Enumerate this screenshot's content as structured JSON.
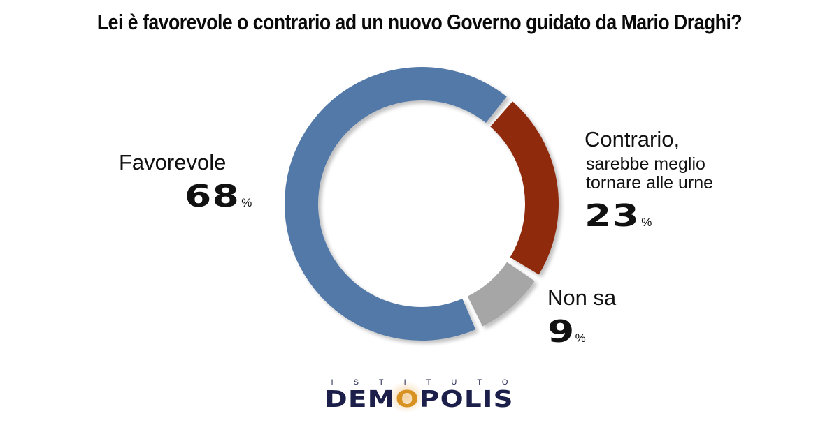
{
  "title": "Lei è favorevole o contrario ad un nuovo Governo guidato da Mario Draghi?",
  "labels": {
    "favorevole": {
      "name": "Favorevole",
      "value": "68",
      "unit": "%"
    },
    "contrario": {
      "name": "Contrario,",
      "sub1": "sarebbe meglio",
      "sub2": "tornare alle urne",
      "value": "23",
      "unit": "%"
    },
    "non_sa": {
      "name": "Non sa",
      "value": "9",
      "unit": "%"
    }
  },
  "logo": {
    "top": "ISTITUTO",
    "pre": "DEM",
    "o": "O",
    "post": "POLIS"
  },
  "colors": {
    "favorevole": "#5379a8",
    "contrario": "#8f2a0c",
    "non_sa": "#a6a6a6",
    "logo_navy": "#1c1f4a",
    "logo_orange": "#d89221"
  },
  "chart_data": {
    "type": "pie",
    "subtype": "donut",
    "title": "Lei è favorevole o contrario ad un nuovo Governo guidato da Mario Draghi?",
    "categories": [
      "Favorevole",
      "Contrario, sarebbe meglio tornare alle urne",
      "Non sa"
    ],
    "values": [
      68,
      23,
      9
    ],
    "unit": "%",
    "colors": [
      "#5379a8",
      "#8f2a0c",
      "#a6a6a6"
    ],
    "legend": "none (direct labels)",
    "source_logo": "Istituto Demopolis"
  }
}
